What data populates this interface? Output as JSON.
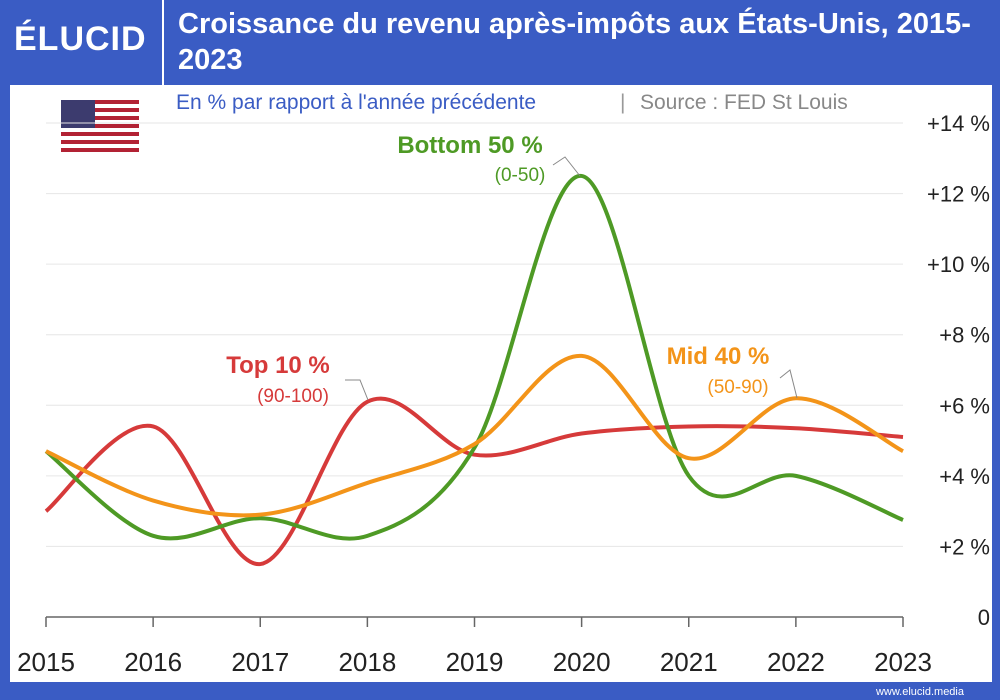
{
  "header": {
    "logo": "ÉLUCID",
    "footer": "www.elucid.media"
  },
  "chart_data": {
    "type": "line",
    "title": "Croissance du revenu après-impôts aux États-Unis, 2015-2023",
    "subtitle": "En % par rapport à l'année précédente",
    "source": "Source : FED St Louis",
    "x": [
      2015,
      2016,
      2017,
      2018,
      2019,
      2020,
      2021,
      2022,
      2023
    ],
    "xlim": [
      2015,
      2023
    ],
    "xticks": [
      2015,
      2016,
      2017,
      2018,
      2019,
      2020,
      2021,
      2022,
      2023
    ],
    "ylim": [
      0,
      14
    ],
    "yticks": [
      0,
      {
        "value": 2,
        "label": "+2 %"
      },
      {
        "value": 4,
        "label": "+4 %"
      },
      {
        "value": 6,
        "label": "+6 %"
      },
      {
        "value": 8,
        "label": "+8 %"
      },
      {
        "value": 10,
        "label": "+10 %"
      },
      {
        "value": 12,
        "label": "+12 %"
      },
      {
        "value": 14,
        "label": "+14 %"
      }
    ],
    "grid": true,
    "series": [
      {
        "name": "Top 10 %",
        "range": "(90-100)",
        "color": "#d63a3a",
        "values": [
          3.0,
          5.4,
          1.5,
          6.1,
          4.6,
          5.2,
          5.4,
          5.35,
          5.1
        ]
      },
      {
        "name": "Bottom 50 %",
        "range": "(0-50)",
        "color": "#4e9a25",
        "values": [
          4.7,
          2.3,
          2.8,
          2.3,
          4.8,
          12.5,
          4.0,
          4.0,
          2.75
        ]
      },
      {
        "name": "Mid 40 %",
        "range": "(50-90)",
        "color": "#f39419",
        "values": [
          4.7,
          3.3,
          2.9,
          3.8,
          4.9,
          7.4,
          4.5,
          6.2,
          4.7
        ]
      }
    ]
  }
}
